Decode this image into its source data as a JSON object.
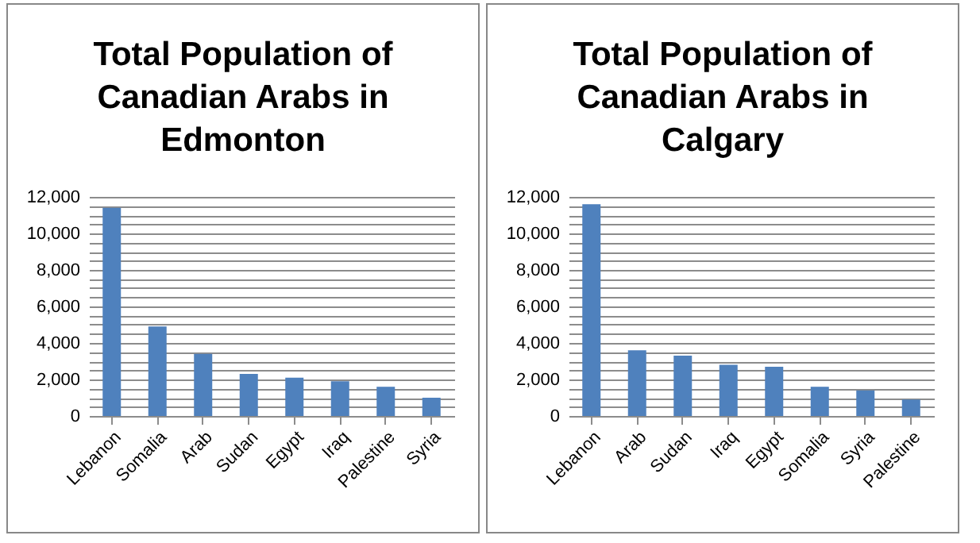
{
  "chart_data": [
    {
      "type": "bar",
      "title": "Total Population of Canadian Arabs in Edmonton",
      "categories": [
        "Lebanon",
        "Somalia",
        "Arab",
        "Sudan",
        "Egypt",
        "Iraq",
        "Palestine",
        "Syria"
      ],
      "values": [
        11400,
        4900,
        3400,
        2300,
        2100,
        1900,
        1600,
        1000
      ],
      "color": "#4f81bd",
      "ylim": [
        0,
        12000
      ],
      "yticks": [
        0,
        {
          "value": 500,
          "label": null
        },
        {
          "value": 1000,
          "label": null
        },
        {
          "value": 1500,
          "label": null
        },
        {
          "value": 2000,
          "label": "2,000"
        },
        {
          "value": 2500,
          "label": null
        },
        {
          "value": 3000,
          "label": null
        },
        {
          "value": 3500,
          "label": null
        },
        {
          "value": 4000,
          "label": "4,000"
        },
        {
          "value": 4500,
          "label": null
        },
        {
          "value": 5000,
          "label": null
        },
        {
          "value": 5500,
          "label": null
        },
        {
          "value": 6000,
          "label": "6,000"
        },
        {
          "value": 6500,
          "label": null
        },
        {
          "value": 7000,
          "label": null
        },
        {
          "value": 7500,
          "label": null
        },
        {
          "value": 8000,
          "label": "8,000"
        },
        {
          "value": 8500,
          "label": null
        },
        {
          "value": 9000,
          "label": null
        },
        {
          "value": 9500,
          "label": null
        },
        {
          "value": 10000,
          "label": "10,000"
        },
        {
          "value": 10500,
          "label": null
        },
        {
          "value": 11000,
          "label": null
        },
        {
          "value": 11500,
          "label": null
        },
        {
          "value": 12000,
          "label": "12,000"
        }
      ],
      "grid": "y"
    },
    {
      "type": "bar",
      "title": "Total Population of Canadian Arabs in Calgary",
      "categories": [
        "Lebanon",
        "Arab",
        "Sudan",
        "Iraq",
        "Egypt",
        "Somalia",
        "Syria",
        "Palestine"
      ],
      "values": [
        11600,
        3600,
        3300,
        2800,
        2700,
        1600,
        1400,
        900
      ],
      "color": "#4f81bd",
      "ylim": [
        0,
        12000
      ],
      "yticks": [
        0,
        {
          "value": 500,
          "label": null
        },
        {
          "value": 1000,
          "label": null
        },
        {
          "value": 1500,
          "label": null
        },
        {
          "value": 2000,
          "label": "2,000"
        },
        {
          "value": 2500,
          "label": null
        },
        {
          "value": 3000,
          "label": null
        },
        {
          "value": 3500,
          "label": null
        },
        {
          "value": 4000,
          "label": "4,000"
        },
        {
          "value": 4500,
          "label": null
        },
        {
          "value": 5000,
          "label": null
        },
        {
          "value": 5500,
          "label": null
        },
        {
          "value": 6000,
          "label": "6,000"
        },
        {
          "value": 6500,
          "label": null
        },
        {
          "value": 7000,
          "label": null
        },
        {
          "value": 7500,
          "label": null
        },
        {
          "value": 8000,
          "label": "8,000"
        },
        {
          "value": 8500,
          "label": null
        },
        {
          "value": 9000,
          "label": null
        },
        {
          "value": 9500,
          "label": null
        },
        {
          "value": 10000,
          "label": "10,000"
        },
        {
          "value": 10500,
          "label": null
        },
        {
          "value": 11000,
          "label": null
        },
        {
          "value": 11500,
          "label": null
        },
        {
          "value": 12000,
          "label": "12,000"
        }
      ],
      "grid": "y"
    }
  ]
}
